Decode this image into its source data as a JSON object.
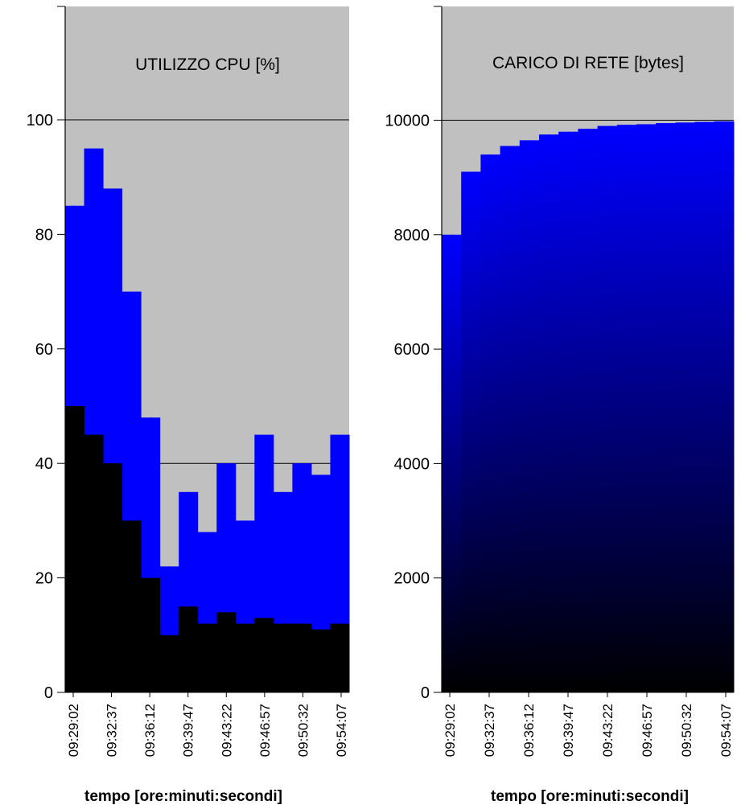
{
  "chart_data": [
    {
      "type": "bar",
      "title": "UTILIZZO CPU [%]",
      "xlabel": "tempo [ore:minuti:secondi]",
      "ylabel": "",
      "ylim": [
        0,
        100
      ],
      "yticks": [
        0,
        20,
        40,
        60,
        80,
        100
      ],
      "y_tick_labels": [
        "0",
        "20",
        "40",
        "60",
        "80",
        "100"
      ],
      "grid": "horizontal",
      "background_color": "#c0c0c0",
      "x_tick_labels": [
        "09:29:02",
        "09:32:37",
        "09:36:12",
        "09:39:47",
        "09:43:22",
        "09:46:57",
        "09:50:32",
        "09:54:07"
      ],
      "series": [
        {
          "color": "#0000ff",
          "x": [
            "09:29:02",
            "09:30:50",
            "09:32:37",
            "09:34:25",
            "09:36:12",
            "09:38:00",
            "09:39:47",
            "09:41:35",
            "09:43:22",
            "09:45:10",
            "09:46:57",
            "09:48:45",
            "09:50:32",
            "09:52:20",
            "09:54:07"
          ],
          "values": [
            85,
            95,
            88,
            70,
            48,
            22,
            35,
            28,
            40,
            30,
            45,
            35,
            40,
            38,
            45
          ]
        },
        {
          "color": "#000000",
          "x": [
            "09:29:02",
            "09:30:50",
            "09:32:37",
            "09:34:25",
            "09:36:12",
            "09:38:00",
            "09:39:47",
            "09:41:35",
            "09:43:22",
            "09:45:10",
            "09:46:57",
            "09:48:45",
            "09:50:32",
            "09:52:20",
            "09:54:07"
          ],
          "values": [
            50,
            45,
            40,
            30,
            20,
            10,
            15,
            12,
            14,
            12,
            13,
            12,
            12,
            11,
            12
          ]
        }
      ]
    },
    {
      "type": "bar",
      "title": "CARICO DI RETE [bytes]",
      "xlabel": "tempo [ore:minuti:secondi]",
      "ylabel": "",
      "ylim": [
        0,
        12000
      ],
      "yticks": [
        0,
        2000,
        4000,
        6000,
        8000,
        10000
      ],
      "y_tick_labels": [
        "0",
        "2000",
        "4000",
        "6000",
        "8000",
        "10000"
      ],
      "grid": "horizontal",
      "background_color": "#c0c0c0",
      "x_tick_labels": [
        "09:29:02",
        "09:32:37",
        "09:36:12",
        "09:39:47",
        "09:43:22",
        "09:46:57",
        "09:50:32",
        "09:54:07"
      ],
      "series": [
        {
          "color": "#0000ff",
          "x": [
            "09:29:02",
            "09:30:50",
            "09:32:37",
            "09:34:25",
            "09:36:12",
            "09:38:00",
            "09:39:47",
            "09:41:35",
            "09:43:22",
            "09:45:10",
            "09:46:57",
            "09:48:45",
            "09:50:32",
            "09:52:20",
            "09:54:07"
          ],
          "values": [
            8000,
            9100,
            9400,
            9550,
            9650,
            9750,
            9800,
            9850,
            9900,
            9920,
            9930,
            9950,
            9960,
            9970,
            9980
          ]
        }
      ]
    }
  ]
}
